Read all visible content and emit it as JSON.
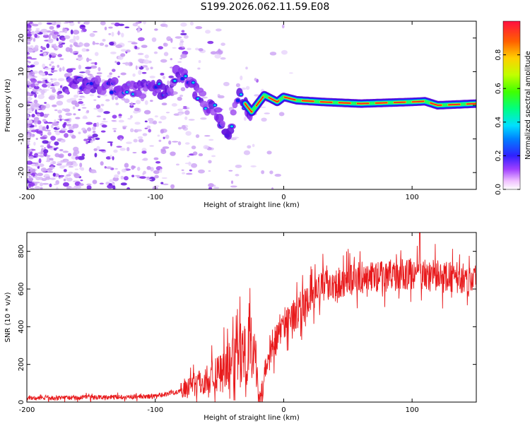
{
  "title": "S199.2026.062.11.59.E08",
  "chart_data": [
    {
      "type": "heatmap",
      "xlabel": "Height of straight line (km)",
      "ylabel": "Frequency (Hz)",
      "xlim": [
        -200,
        150
      ],
      "ylim": [
        -25,
        25
      ],
      "xticks": [
        -200,
        -100,
        0,
        100
      ],
      "yticks": [
        -20,
        -10,
        0,
        10,
        20
      ],
      "colorbar": {
        "label": "Normalized spectral amplitude",
        "range": [
          0.0,
          1.0
        ],
        "ticks": [
          "0.0",
          "0.2",
          "0.4",
          "0.6",
          "0.8"
        ]
      },
      "ridge": [
        {
          "x": -160,
          "y": 6
        },
        {
          "x": -140,
          "y": 5.5
        },
        {
          "x": -120,
          "y": 5
        },
        {
          "x": -100,
          "y": 4.5
        },
        {
          "x": -90,
          "y": 5
        },
        {
          "x": -82,
          "y": 10
        },
        {
          "x": -70,
          "y": 5
        },
        {
          "x": -60,
          "y": 0
        },
        {
          "x": -50,
          "y": -3
        },
        {
          "x": -43,
          "y": -10
        },
        {
          "x": -35,
          "y": 3
        },
        {
          "x": -25,
          "y": -2
        },
        {
          "x": -15,
          "y": 3
        },
        {
          "x": -5,
          "y": 1
        },
        {
          "x": 0,
          "y": 2.5
        },
        {
          "x": 10,
          "y": 1.5
        },
        {
          "x": 30,
          "y": 1
        },
        {
          "x": 60,
          "y": 0.5
        },
        {
          "x": 100,
          "y": 1
        },
        {
          "x": 110,
          "y": 1.2
        },
        {
          "x": 120,
          "y": 0
        },
        {
          "x": 150,
          "y": 0.5
        }
      ]
    },
    {
      "type": "line",
      "xlabel": "Height of straight line (km)",
      "ylabel": "SNR (10 * v/v)",
      "xlim": [
        -200,
        150
      ],
      "ylim": [
        0,
        900
      ],
      "xticks": [
        -200,
        -100,
        0,
        100
      ],
      "yticks": [
        0,
        200,
        400,
        600,
        800
      ],
      "color": "#e8191b",
      "trend": [
        {
          "x": -200,
          "y": 20
        },
        {
          "x": -100,
          "y": 30
        },
        {
          "x": -80,
          "y": 60
        },
        {
          "x": -60,
          "y": 120
        },
        {
          "x": -40,
          "y": 200
        },
        {
          "x": -25,
          "y": 330
        },
        {
          "x": -18,
          "y": 40
        },
        {
          "x": -10,
          "y": 280
        },
        {
          "x": 0,
          "y": 420
        },
        {
          "x": 15,
          "y": 500
        },
        {
          "x": 30,
          "y": 620
        },
        {
          "x": 60,
          "y": 660
        },
        {
          "x": 100,
          "y": 680
        },
        {
          "x": 150,
          "y": 650
        }
      ],
      "peak": {
        "x": 106,
        "y": 910
      }
    }
  ]
}
